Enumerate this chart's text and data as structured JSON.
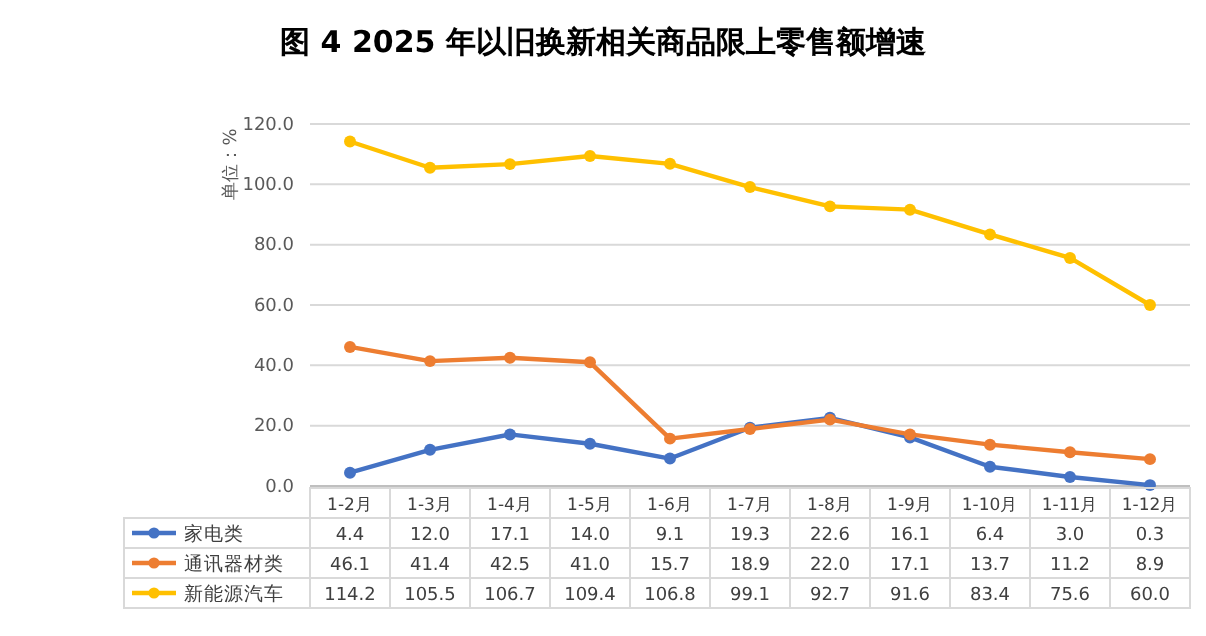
{
  "chart_data": {
    "type": "line",
    "title": "图 4 2025 年以旧换新相关商品限上零售额增速",
    "ylabel": "单位：%",
    "categories": [
      "1-2月",
      "1-3月",
      "1-4月",
      "1-5月",
      "1-6月",
      "1-7月",
      "1-8月",
      "1-9月",
      "1-10月",
      "1-11月",
      "1-12月"
    ],
    "series": [
      {
        "name": "家电类",
        "color": "#4472c4",
        "values": [
          4.4,
          12.0,
          17.1,
          14.0,
          9.1,
          19.3,
          22.6,
          16.1,
          6.4,
          3.0,
          0.3
        ],
        "value_labels": [
          "4.4",
          "12.0",
          "17.1",
          "14.0",
          "9.1",
          "19.3",
          "22.6",
          "16.1",
          "6.4",
          "3.0",
          "0.3"
        ]
      },
      {
        "name": "通讯器材类",
        "color": "#ed7d31",
        "values": [
          46.1,
          41.4,
          42.5,
          41.0,
          15.7,
          18.9,
          22.0,
          17.1,
          13.7,
          11.2,
          8.9
        ],
        "value_labels": [
          "46.1",
          "41.4",
          "42.5",
          "41.0",
          "15.7",
          "18.9",
          "22.0",
          "17.1",
          "13.7",
          "11.2",
          "8.9"
        ]
      },
      {
        "name": "新能源汽车",
        "color": "#ffc000",
        "values": [
          114.2,
          105.5,
          106.7,
          109.4,
          106.8,
          99.1,
          92.7,
          91.6,
          83.4,
          75.6,
          60.0
        ],
        "value_labels": [
          "114.2",
          "105.5",
          "106.7",
          "109.4",
          "106.8",
          "99.1",
          "92.7",
          "91.6",
          "83.4",
          "75.6",
          "60.0"
        ]
      }
    ],
    "ylim": [
      0,
      120
    ],
    "yticks": [
      {
        "value": 0,
        "label": "0.0"
      },
      {
        "value": 20,
        "label": "20.0"
      },
      {
        "value": 40,
        "label": "40.0"
      },
      {
        "value": 60,
        "label": "60.0"
      },
      {
        "value": 80,
        "label": "80.0"
      },
      {
        "value": 100,
        "label": "100.0"
      },
      {
        "value": 120,
        "label": "120.0"
      }
    ],
    "grid": "y",
    "legend": "bottom",
    "marker": "circle",
    "line_style": "solid"
  }
}
